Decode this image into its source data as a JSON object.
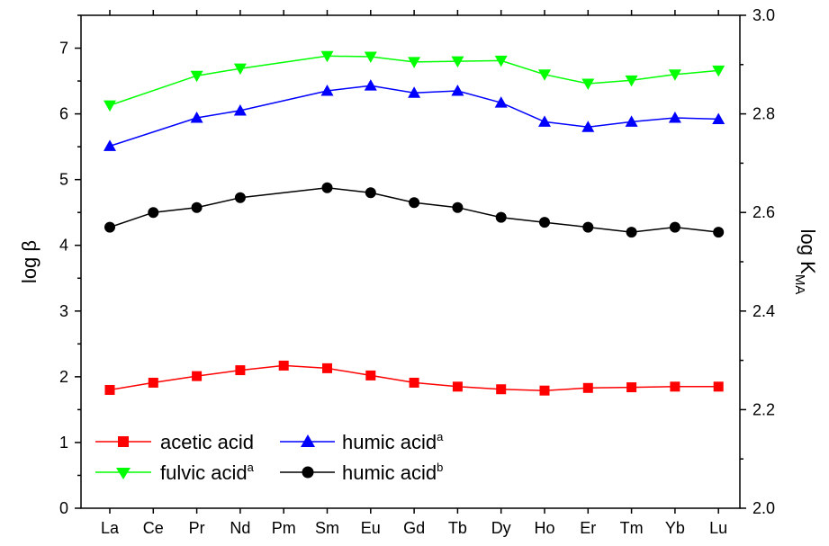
{
  "chart_data": {
    "type": "line",
    "categories": [
      "La",
      "Ce",
      "Pr",
      "Nd",
      "Pm",
      "Sm",
      "Eu",
      "Gd",
      "Tb",
      "Dy",
      "Ho",
      "Er",
      "Tm",
      "Yb",
      "Lu"
    ],
    "ylabel": "log β",
    "y2label": "log K",
    "y2label_sub": "MA",
    "ylim": [
      0,
      7.5
    ],
    "y2lim": [
      2.0,
      3.0
    ],
    "yticks": [
      "0",
      "1",
      "2",
      "3",
      "4",
      "5",
      "6",
      "7"
    ],
    "y2ticks": [
      "2.0",
      "2.2",
      "2.4",
      "2.6",
      "2.8",
      "3.0"
    ],
    "grid": false,
    "legend_position": "bottom-left",
    "series": [
      {
        "name": "acetic acid",
        "sup": "",
        "color": "#ff0000",
        "marker": "square",
        "axis": "left",
        "values": [
          1.8,
          1.91,
          2.01,
          2.1,
          2.17,
          2.13,
          2.02,
          1.91,
          1.85,
          1.81,
          1.79,
          1.83,
          1.84,
          1.85,
          1.85
        ]
      },
      {
        "name": "humic acid",
        "sup": "a",
        "color": "#0000ff",
        "marker": "triangle-up",
        "axis": "left",
        "values": [
          5.51,
          null,
          5.94,
          6.05,
          null,
          6.35,
          6.43,
          6.32,
          6.35,
          6.17,
          5.88,
          5.8,
          5.88,
          5.94,
          5.92
        ]
      },
      {
        "name": "fulvic acid",
        "sup": "a",
        "color": "#00ff00",
        "marker": "triangle-down",
        "axis": "left",
        "values": [
          6.13,
          null,
          6.58,
          6.69,
          null,
          6.88,
          6.87,
          6.79,
          6.8,
          6.81,
          6.6,
          6.46,
          6.51,
          6.6,
          6.66
        ]
      },
      {
        "name": "humic acid",
        "sup": "b",
        "color": "#000000",
        "marker": "circle",
        "axis": "right",
        "values": [
          2.57,
          2.6,
          2.61,
          2.63,
          null,
          2.65,
          2.64,
          2.62,
          2.61,
          2.59,
          2.58,
          2.57,
          2.56,
          2.57,
          2.56
        ]
      }
    ]
  }
}
